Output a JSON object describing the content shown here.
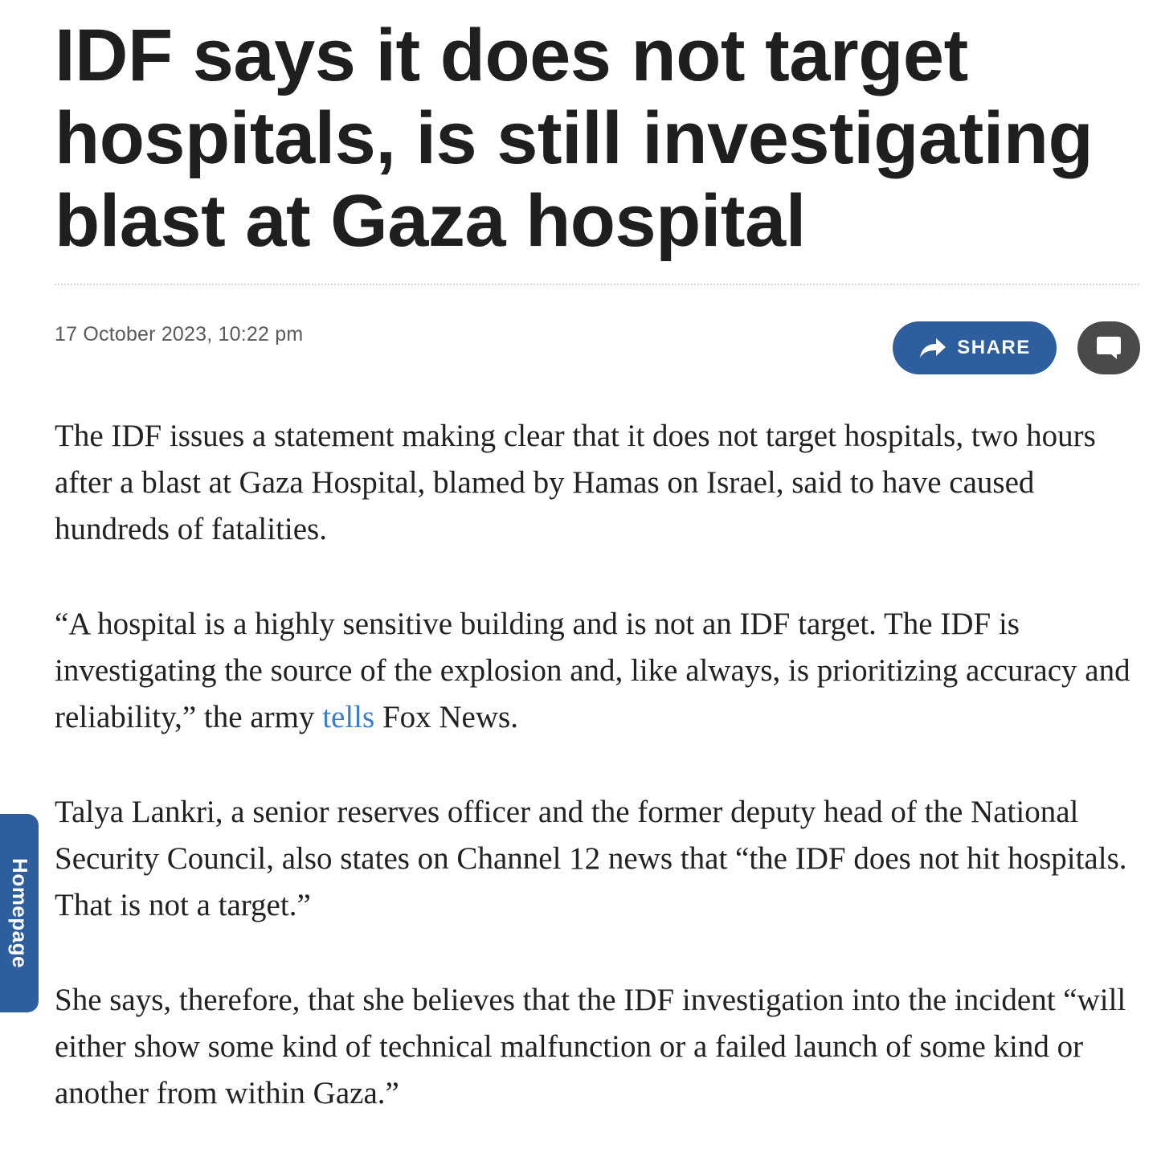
{
  "article": {
    "headline": "IDF says it does not target hospitals, is still investigating blast at Gaza hospital",
    "timestamp": "17 October 2023, 10:22 pm",
    "share_label": "SHARE",
    "paragraphs": {
      "p1": "The IDF issues a statement making clear that it does not target hospitals, two hours after a blast at Gaza Hospital, blamed by Hamas on Israel, said to have caused hundreds of fatalities.",
      "p2_before_link": "“A hospital is a highly sensitive building and is not an IDF target. The IDF is investigating the source of the explosion and, like always, is prioritizing accuracy and reliability,” the army ",
      "p2_link": "tells",
      "p2_after_link": " Fox News.",
      "p3": "Talya Lankri, a senior reserves officer and the former deputy head of the National Security Council, also states on Channel 12 news that “the IDF does not hit hospitals. That is not a target.”",
      "p4": "She says, therefore, that she believes that the IDF investigation into the incident “will either show some kind of technical malfunction or a failed launch of some kind or another from within Gaza.”"
    }
  },
  "side_tab": {
    "label": "Homepage"
  },
  "icons": {
    "share": "share-arrow-icon",
    "comments": "comment-bubble-icon"
  },
  "colors": {
    "accent": "#2f5e9e",
    "link": "#3a7fcf",
    "comment_button": "#4a4a4a",
    "headline": "#1f1f1f",
    "body_text": "#222222",
    "meta_text": "#5a5a5a"
  }
}
